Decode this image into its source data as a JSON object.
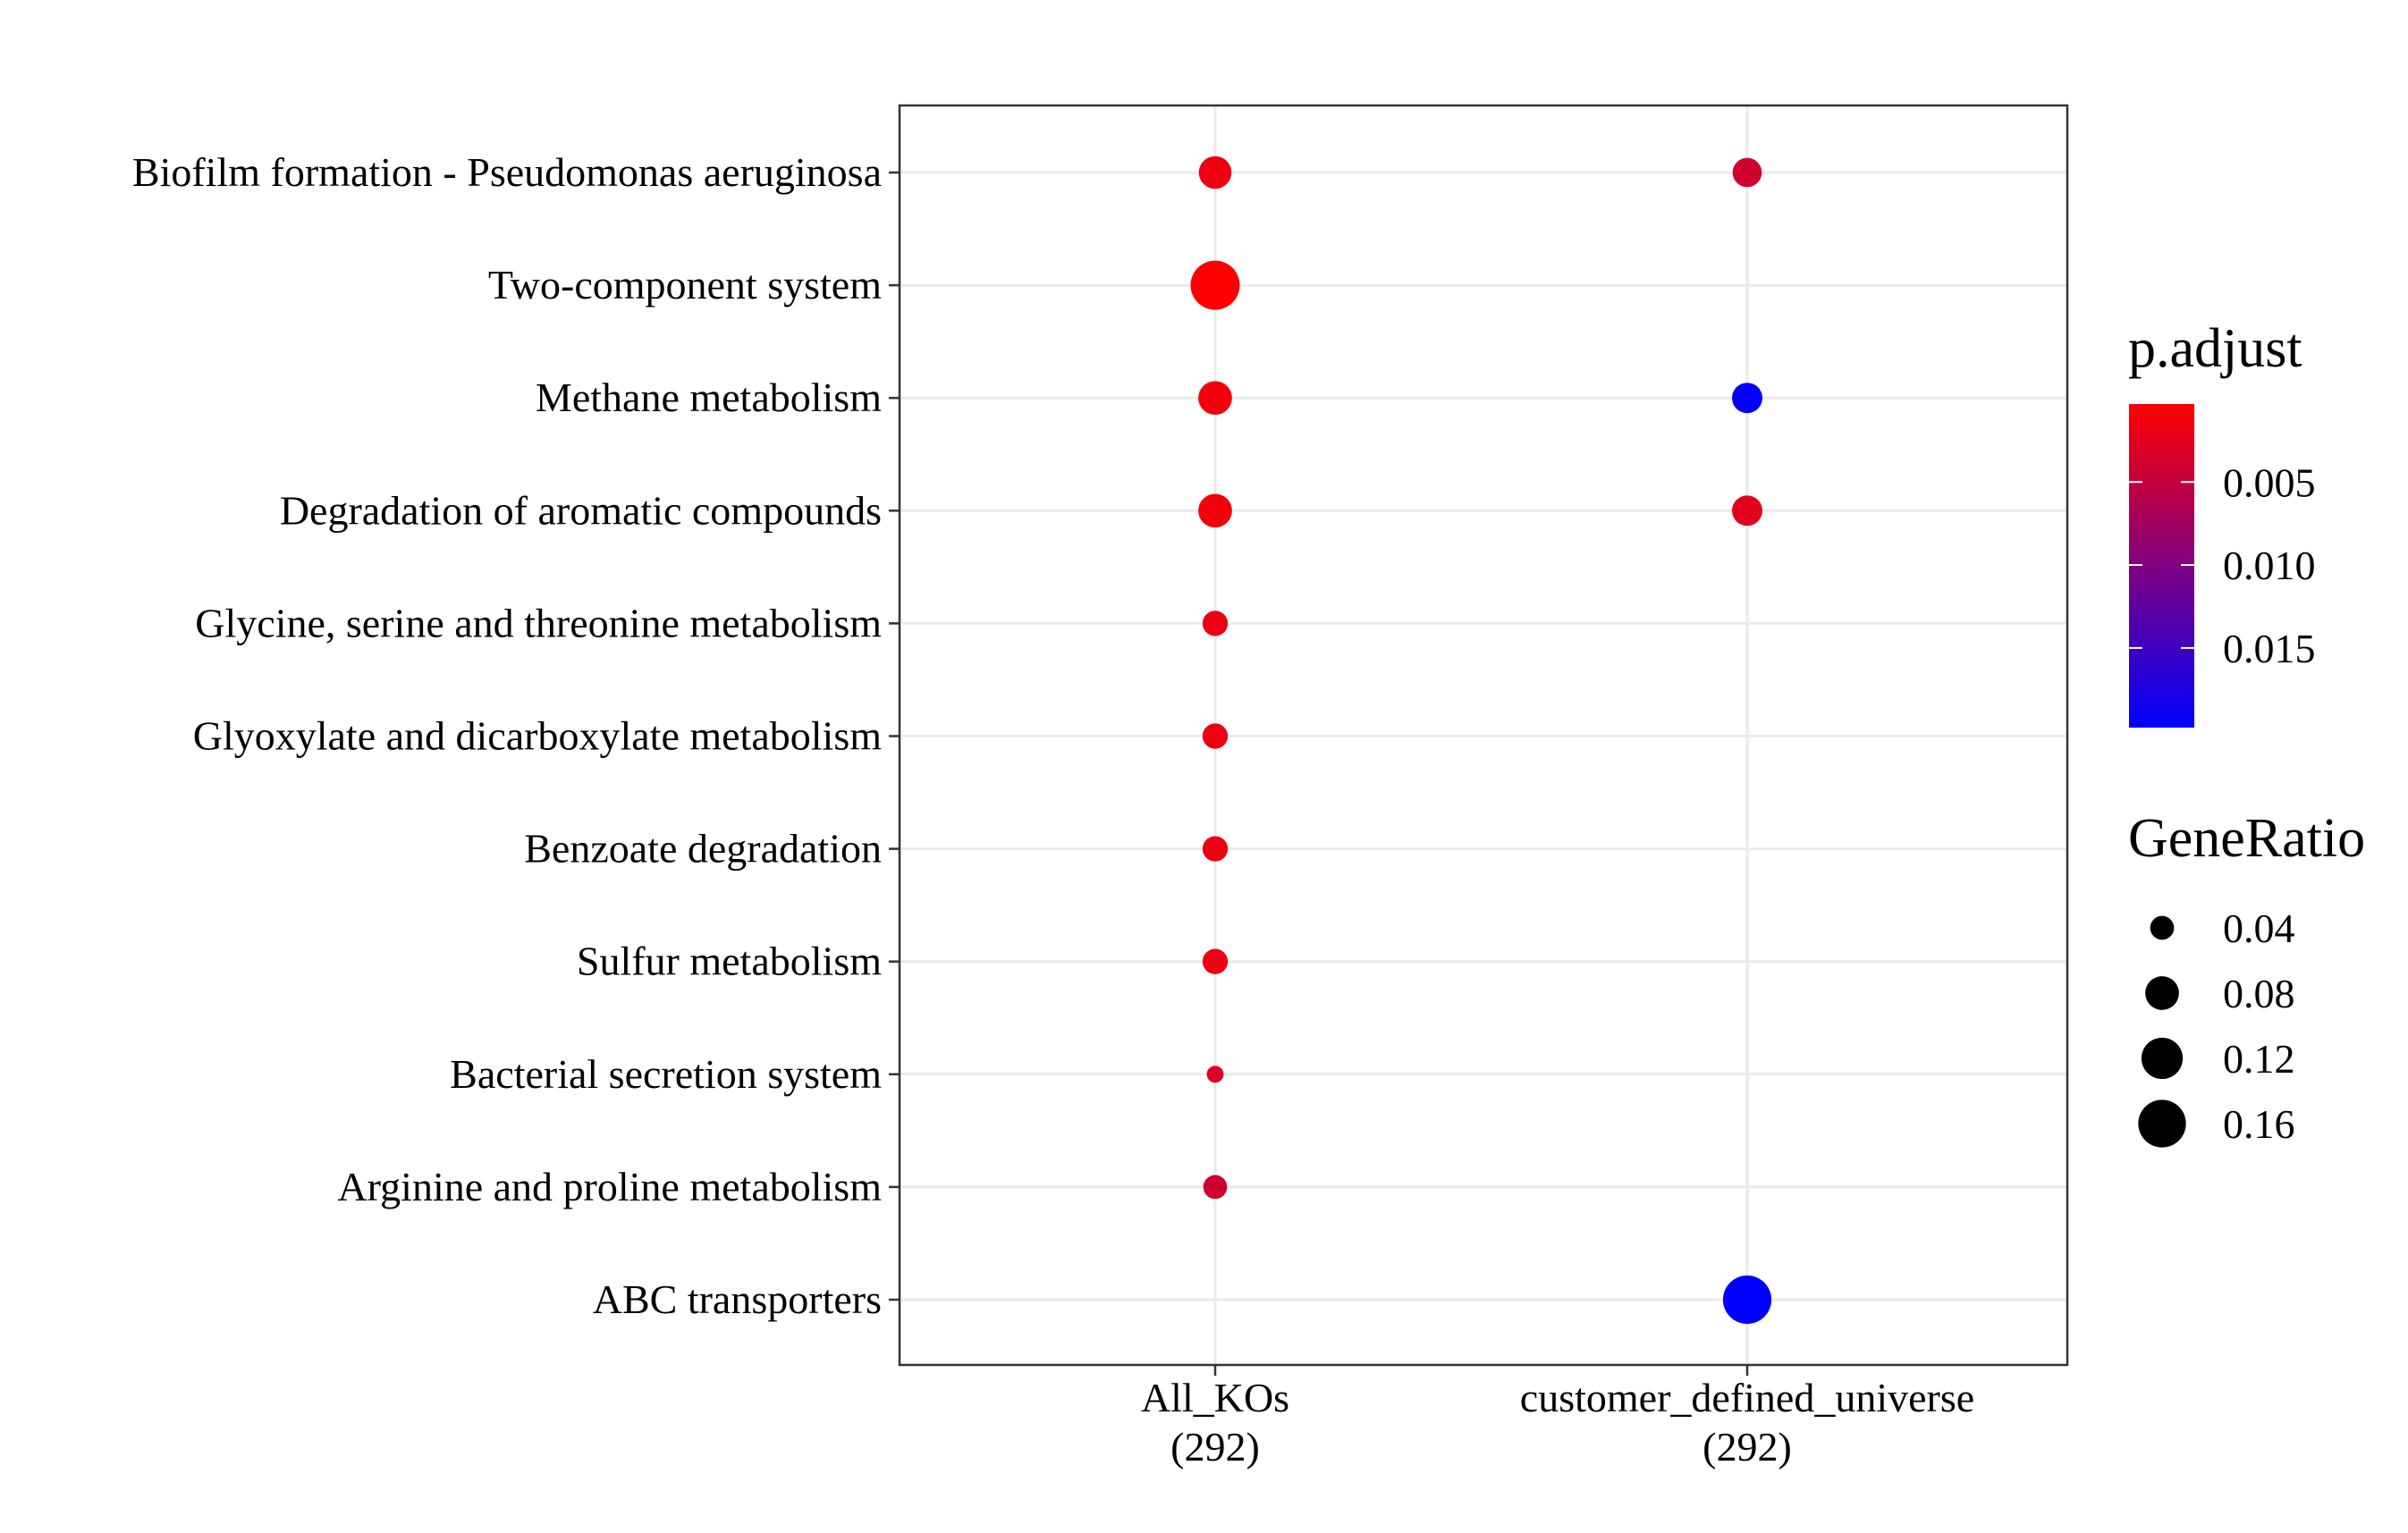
{
  "chart_data": {
    "type": "scatter",
    "categories_y": [
      "Biofilm formation - Pseudomonas aeruginosa",
      "Two-component system",
      "Methane metabolism",
      "Degradation of aromatic compounds",
      "Glycine, serine and threonine metabolism",
      "Glyoxylate and dicarboxylate metabolism",
      "Benzoate degradation",
      "Sulfur metabolism",
      "Bacterial secretion system",
      "Arginine and proline metabolism",
      "ABC transporters"
    ],
    "categories_x": [
      {
        "name": "All_KOs",
        "count": "(292)"
      },
      {
        "name": "customer_defined_universe",
        "count": "(292)"
      }
    ],
    "points": [
      {
        "x": "All_KOs",
        "y": "Biofilm formation - Pseudomonas aeruginosa",
        "gene_ratio": 0.075,
        "p_adjust": 0.0015
      },
      {
        "x": "All_KOs",
        "y": "Two-component system",
        "gene_ratio": 0.17,
        "p_adjust": 0.0003
      },
      {
        "x": "All_KOs",
        "y": "Methane metabolism",
        "gene_ratio": 0.08,
        "p_adjust": 0.0012
      },
      {
        "x": "All_KOs",
        "y": "Degradation of aromatic compounds",
        "gene_ratio": 0.08,
        "p_adjust": 0.0012
      },
      {
        "x": "All_KOs",
        "y": "Glycine, serine and threonine metabolism",
        "gene_ratio": 0.045,
        "p_adjust": 0.0018
      },
      {
        "x": "All_KOs",
        "y": "Glyoxylate and dicarboxylate metabolism",
        "gene_ratio": 0.045,
        "p_adjust": 0.0018
      },
      {
        "x": "All_KOs",
        "y": "Benzoate degradation",
        "gene_ratio": 0.045,
        "p_adjust": 0.0018
      },
      {
        "x": "All_KOs",
        "y": "Sulfur metabolism",
        "gene_ratio": 0.045,
        "p_adjust": 0.0018
      },
      {
        "x": "All_KOs",
        "y": "Bacterial secretion system",
        "gene_ratio": 0.02,
        "p_adjust": 0.003
      },
      {
        "x": "All_KOs",
        "y": "Arginine and proline metabolism",
        "gene_ratio": 0.04,
        "p_adjust": 0.004
      },
      {
        "x": "customer_defined_universe",
        "y": "Biofilm formation - Pseudomonas aeruginosa",
        "gene_ratio": 0.06,
        "p_adjust": 0.004
      },
      {
        "x": "customer_defined_universe",
        "y": "Methane metabolism",
        "gene_ratio": 0.065,
        "p_adjust": 0.0195
      },
      {
        "x": "customer_defined_universe",
        "y": "Degradation of aromatic compounds",
        "gene_ratio": 0.065,
        "p_adjust": 0.0025
      },
      {
        "x": "customer_defined_universe",
        "y": "ABC transporters",
        "gene_ratio": 0.165,
        "p_adjust": 0.0198
      }
    ],
    "color_legend": {
      "title": "p.adjust",
      "ticks": [
        0.005,
        0.01,
        0.015
      ],
      "tick_labels": [
        "0.005",
        "0.010",
        "0.015"
      ],
      "range": [
        0.0003,
        0.0198
      ],
      "low_color": "#ff0000",
      "high_color": "#0000ff"
    },
    "size_legend": {
      "title": "GeneRatio",
      "values": [
        0.04,
        0.08,
        0.12,
        0.16
      ],
      "labels": [
        "0.04",
        "0.08",
        "0.12",
        "0.16"
      ]
    },
    "grid": true,
    "legend_position": "right"
  }
}
